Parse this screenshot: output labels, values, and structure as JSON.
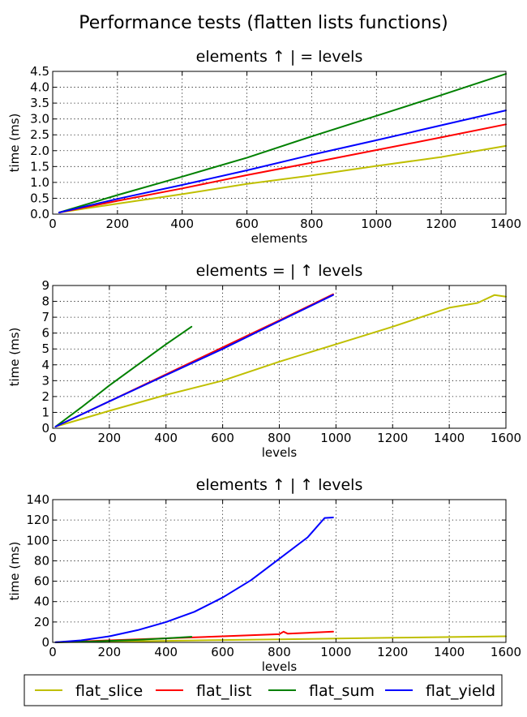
{
  "figure_title": "Performance tests (flatten lists functions)",
  "series_colors": {
    "flat_slice": "#bfbf00",
    "flat_list": "#ff0000",
    "flat_sum": "#008000",
    "flat_yield": "#0000ff"
  },
  "legend": [
    {
      "key": "flat_slice",
      "label": "flat_slice"
    },
    {
      "key": "flat_list",
      "label": "flat_list"
    },
    {
      "key": "flat_sum",
      "label": "flat_sum"
    },
    {
      "key": "flat_yield",
      "label": "flat_yield"
    }
  ],
  "chart_data": [
    {
      "type": "line",
      "title": "elements ↑ | = levels",
      "xlabel": "elements",
      "ylabel": "time (ms)",
      "xlim": [
        0,
        1400
      ],
      "ylim": [
        0,
        4.5
      ],
      "xticks": [
        0,
        200,
        400,
        600,
        800,
        1000,
        1200,
        1400
      ],
      "yticks": [
        0.0,
        0.5,
        1.0,
        1.5,
        2.0,
        2.5,
        3.0,
        3.5,
        4.0,
        4.5
      ],
      "ytick_labels": [
        "0.0",
        "0.5",
        "1.0",
        "1.5",
        "2.0",
        "2.5",
        "3.0",
        "3.5",
        "4.0",
        "4.5"
      ],
      "grid": true,
      "series": [
        {
          "name": "flat_slice",
          "x": [
            20,
            200,
            400,
            600,
            800,
            1000,
            1200,
            1400
          ],
          "y": [
            0.05,
            0.33,
            0.63,
            0.95,
            1.22,
            1.52,
            1.8,
            2.15
          ]
        },
        {
          "name": "flat_list",
          "x": [
            20,
            200,
            400,
            600,
            800,
            1000,
            1200,
            1400
          ],
          "y": [
            0.05,
            0.42,
            0.81,
            1.23,
            1.62,
            2.02,
            2.42,
            2.83
          ]
        },
        {
          "name": "flat_sum",
          "x": [
            20,
            200,
            400,
            600,
            800,
            1000,
            1200,
            1400
          ],
          "y": [
            0.05,
            0.6,
            1.18,
            1.78,
            2.45,
            3.1,
            3.75,
            4.42
          ]
        },
        {
          "name": "flat_yield",
          "x": [
            20,
            200,
            400,
            600,
            800,
            1000,
            1200,
            1400
          ],
          "y": [
            0.05,
            0.48,
            0.92,
            1.38,
            1.87,
            2.33,
            2.8,
            3.27
          ]
        }
      ]
    },
    {
      "type": "line",
      "title": "elements = | ↑ levels",
      "xlabel": "levels",
      "ylabel": "time (ms)",
      "xlim": [
        0,
        1600
      ],
      "ylim": [
        0,
        9
      ],
      "xticks": [
        0,
        200,
        400,
        600,
        800,
        1000,
        1200,
        1400,
        1600
      ],
      "yticks": [
        0,
        1,
        2,
        3,
        4,
        5,
        6,
        7,
        8,
        9
      ],
      "ytick_labels": [
        "0",
        "1",
        "2",
        "3",
        "4",
        "5",
        "6",
        "7",
        "8",
        "9"
      ],
      "grid": true,
      "series": [
        {
          "name": "flat_slice",
          "x": [
            10,
            200,
            400,
            600,
            800,
            1000,
            1200,
            1400,
            1500,
            1560,
            1600
          ],
          "y": [
            0.1,
            1.1,
            2.1,
            3.0,
            4.2,
            5.3,
            6.4,
            7.6,
            7.9,
            8.4,
            8.3
          ]
        },
        {
          "name": "flat_list",
          "x": [
            10,
            200,
            400,
            600,
            800,
            990
          ],
          "y": [
            0.1,
            1.7,
            3.4,
            5.1,
            6.8,
            8.45
          ]
        },
        {
          "name": "flat_sum",
          "x": [
            10,
            100,
            200,
            300,
            400,
            490
          ],
          "y": [
            0.1,
            1.3,
            2.7,
            4.0,
            5.3,
            6.4
          ]
        },
        {
          "name": "flat_yield",
          "x": [
            10,
            200,
            400,
            600,
            800,
            990
          ],
          "y": [
            0.1,
            1.7,
            3.35,
            5.0,
            6.75,
            8.4
          ]
        }
      ]
    },
    {
      "type": "line",
      "title": "elements ↑ | ↑ levels",
      "xlabel": "levels",
      "ylabel": "time (ms)",
      "xlim": [
        0,
        1600
      ],
      "ylim": [
        0,
        140
      ],
      "xticks": [
        0,
        200,
        400,
        600,
        800,
        1000,
        1200,
        1400,
        1600
      ],
      "yticks": [
        0,
        20,
        40,
        60,
        80,
        100,
        120,
        140
      ],
      "ytick_labels": [
        "0",
        "20",
        "40",
        "60",
        "80",
        "100",
        "120",
        "140"
      ],
      "grid": true,
      "series": [
        {
          "name": "flat_slice",
          "x": [
            10,
            400,
            800,
            1200,
            1600
          ],
          "y": [
            0.1,
            1.5,
            3.0,
            4.5,
            6.0
          ]
        },
        {
          "name": "flat_list",
          "x": [
            10,
            200,
            400,
            600,
            800,
            815,
            830,
            990
          ],
          "y": [
            0.1,
            2.0,
            4.0,
            6.0,
            8.0,
            10.5,
            8.5,
            10.5
          ]
        },
        {
          "name": "flat_sum",
          "x": [
            10,
            100,
            200,
            300,
            400,
            490
          ],
          "y": [
            0.1,
            0.6,
            1.5,
            2.5,
            4.0,
            5.5
          ]
        },
        {
          "name": "flat_yield",
          "x": [
            10,
            100,
            200,
            300,
            400,
            500,
            600,
            700,
            800,
            900,
            960,
            990
          ],
          "y": [
            0.1,
            2.0,
            6.0,
            12.0,
            20.0,
            30.0,
            44.0,
            61.0,
            82.0,
            103.0,
            122.0,
            122.5
          ]
        }
      ]
    }
  ]
}
